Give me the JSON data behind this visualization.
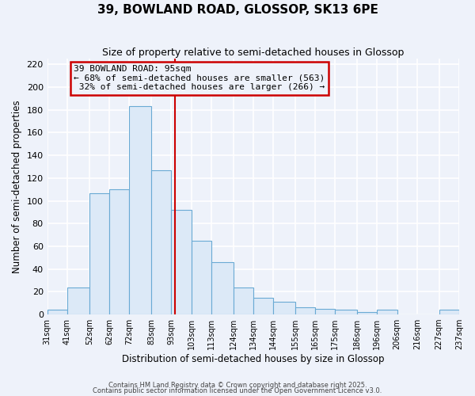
{
  "title": "39, BOWLAND ROAD, GLOSSOP, SK13 6PE",
  "subtitle": "Size of property relative to semi-detached houses in Glossop",
  "xlabel": "Distribution of semi-detached houses by size in Glossop",
  "ylabel": "Number of semi-detached properties",
  "bin_labels": [
    "31sqm",
    "41sqm",
    "52sqm",
    "62sqm",
    "72sqm",
    "83sqm",
    "93sqm",
    "103sqm",
    "113sqm",
    "124sqm",
    "134sqm",
    "144sqm",
    "155sqm",
    "165sqm",
    "175sqm",
    "186sqm",
    "196sqm",
    "206sqm",
    "216sqm",
    "227sqm",
    "237sqm"
  ],
  "bin_edges": [
    31,
    41,
    52,
    62,
    72,
    83,
    93,
    103,
    113,
    124,
    134,
    144,
    155,
    165,
    175,
    186,
    196,
    206,
    216,
    227,
    237
  ],
  "bar_heights": [
    4,
    24,
    107,
    110,
    183,
    127,
    92,
    65,
    46,
    24,
    15,
    11,
    6,
    5,
    4,
    2,
    4,
    0,
    0,
    4
  ],
  "bar_color": "#dce9f7",
  "bar_edgecolor": "#6aaad4",
  "vline_x": 95,
  "vline_color": "#cc0000",
  "annotation_title": "39 BOWLAND ROAD: 95sqm",
  "annotation_line1": "← 68% of semi-detached houses are smaller (563)",
  "annotation_line2": " 32% of semi-detached houses are larger (266) →",
  "annotation_box_edgecolor": "#cc0000",
  "ylim": [
    0,
    225
  ],
  "yticks": [
    0,
    20,
    40,
    60,
    80,
    100,
    120,
    140,
    160,
    180,
    200,
    220
  ],
  "bg_color": "#eef2fa",
  "grid_color": "#d8dfe8",
  "footer1": "Contains HM Land Registry data © Crown copyright and database right 2025.",
  "footer2": "Contains public sector information licensed under the Open Government Licence v3.0."
}
